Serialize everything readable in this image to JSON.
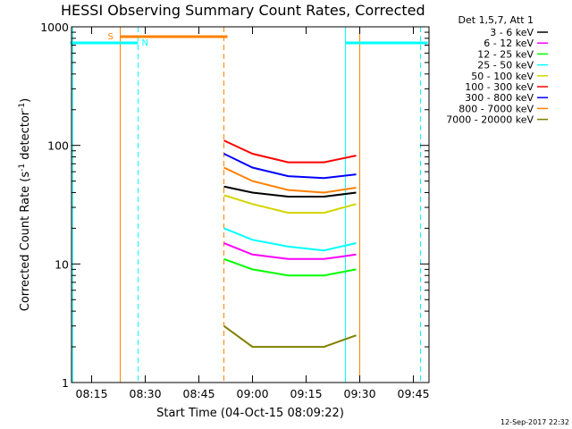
{
  "chart_data": {
    "type": "line",
    "title": "HESSI Observing Summary Count Rates, Corrected",
    "xlabel": "Start Time (04-Oct-15 08:09:22)",
    "ylabel_main": "Corrected Count Rate (s",
    "ylabel_sup1": "-1",
    "ylabel_mid": " detector",
    "ylabel_sup2": "-1",
    "ylabel_end": ")",
    "y_scale": "log",
    "ylim": [
      1,
      1000
    ],
    "xlim": [
      "08:09:22",
      "09:49:22"
    ],
    "x_ticks": [
      "08:15",
      "08:30",
      "08:45",
      "09:00",
      "09:15",
      "09:30",
      "09:45"
    ],
    "y_ticks": [
      "1",
      "10",
      "100",
      "1000"
    ],
    "legend_title": "Det 1,5,7, Att 1",
    "legend_position": "top-right",
    "series": [
      {
        "name": "3 - 6 keV",
        "color": "#000000",
        "points": [
          [
            "08:52",
            45
          ],
          [
            "09:00",
            40
          ],
          [
            "09:10",
            37
          ],
          [
            "09:20",
            37
          ],
          [
            "09:29",
            40
          ]
        ]
      },
      {
        "name": "6 - 12 keV",
        "color": "#ff00ff",
        "points": [
          [
            "08:52",
            15
          ],
          [
            "09:00",
            12
          ],
          [
            "09:10",
            11
          ],
          [
            "09:20",
            11
          ],
          [
            "09:29",
            12
          ]
        ]
      },
      {
        "name": "12 - 25 keV",
        "color": "#00ff00",
        "points": [
          [
            "08:52",
            11
          ],
          [
            "09:00",
            9
          ],
          [
            "09:10",
            8
          ],
          [
            "09:20",
            8
          ],
          [
            "09:29",
            9
          ]
        ]
      },
      {
        "name": "25 - 50 keV",
        "color": "#00ffff",
        "points": [
          [
            "08:52",
            20
          ],
          [
            "09:00",
            16
          ],
          [
            "09:10",
            14
          ],
          [
            "09:20",
            13
          ],
          [
            "09:29",
            15
          ]
        ]
      },
      {
        "name": "50 - 100 keV",
        "color": "#d4d400",
        "points": [
          [
            "08:52",
            38
          ],
          [
            "09:00",
            32
          ],
          [
            "09:10",
            27
          ],
          [
            "09:20",
            27
          ],
          [
            "09:29",
            32
          ]
        ]
      },
      {
        "name": "100 - 300 keV",
        "color": "#ff0000",
        "points": [
          [
            "08:52",
            110
          ],
          [
            "09:00",
            85
          ],
          [
            "09:10",
            72
          ],
          [
            "09:20",
            72
          ],
          [
            "09:29",
            82
          ]
        ]
      },
      {
        "name": "300 - 800 keV",
        "color": "#0000ff",
        "points": [
          [
            "08:52",
            85
          ],
          [
            "09:00",
            65
          ],
          [
            "09:10",
            55
          ],
          [
            "09:20",
            53
          ],
          [
            "09:29",
            57
          ]
        ]
      },
      {
        "name": "800 - 7000 keV",
        "color": "#ff8000",
        "points": [
          [
            "08:52",
            65
          ],
          [
            "09:00",
            50
          ],
          [
            "09:10",
            42
          ],
          [
            "09:20",
            40
          ],
          [
            "09:29",
            44
          ]
        ]
      },
      {
        "name": "7000 - 20000 keV",
        "color": "#808000",
        "points": [
          [
            "08:52",
            3
          ],
          [
            "09:00",
            2
          ],
          [
            "09:10",
            2
          ],
          [
            "09:20",
            2
          ],
          [
            "09:29",
            2.5
          ]
        ]
      }
    ],
    "annotations": {
      "saa_label": "S",
      "night_label": "N",
      "saa_color": "#ff8000",
      "night_color": "#00ffff",
      "saa_interval": [
        "08:23",
        "08:53"
      ],
      "night_intervals": [
        [
          "08:09",
          "08:28"
        ],
        [
          "09:26",
          "09:49"
        ]
      ],
      "vlines": [
        {
          "time": "08:09:40",
          "color": "#00ffff",
          "style": "solid"
        },
        {
          "time": "08:23",
          "color": "#ff8000",
          "style": "solid"
        },
        {
          "time": "08:28",
          "color": "#00ffff",
          "style": "dashed"
        },
        {
          "time": "08:52",
          "color": "#ff8000",
          "style": "dashed"
        },
        {
          "time": "09:26",
          "color": "#00ffff",
          "style": "solid"
        },
        {
          "time": "09:30",
          "color": "#ff8000",
          "style": "solid"
        },
        {
          "time": "09:47",
          "color": "#00ffff",
          "style": "dashed"
        }
      ]
    },
    "timestamp": "12-Sep-2017 22:32"
  }
}
